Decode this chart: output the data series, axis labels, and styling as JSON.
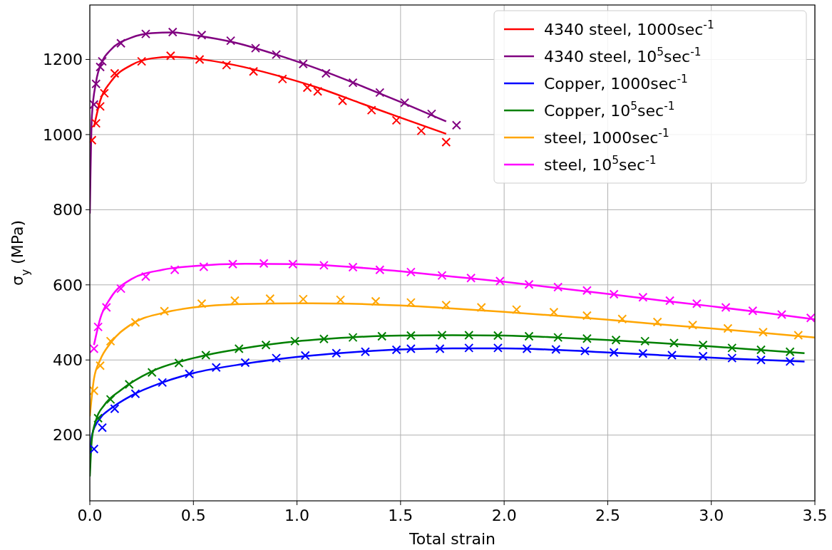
{
  "chart_data": {
    "type": "line",
    "xlabel": "Total strain",
    "ylabel": "σ$_{y}$  (MPa)",
    "xlim": [
      0,
      3.5
    ],
    "ylim": [
      25,
      1345
    ],
    "xticks": [
      {
        "value": 0,
        "label": "0.0"
      },
      0.5,
      {
        "value": 1,
        "label": "1.0"
      },
      1.5,
      {
        "value": 2,
        "label": "2.0"
      },
      2.5,
      {
        "value": 3,
        "label": "3.0"
      },
      3.5
    ],
    "yticks": [
      200,
      400,
      600,
      800,
      1000,
      1200
    ],
    "grid": true,
    "legend": "top right",
    "series": [
      {
        "name": "4340 steel,  1000sec$^{-1}$",
        "color": "#ff0000",
        "marker": "none",
        "x": [
          0.02,
          0.05,
          0.1,
          0.2,
          0.3,
          0.4,
          0.5,
          0.7,
          0.9,
          1.1,
          1.3,
          1.5,
          1.72
        ],
        "values": [
          1020,
          1090,
          1140,
          1185,
          1203,
          1207,
          1203,
          1185,
          1158,
          1125,
          1085,
          1045,
          1002
        ]
      },
      {
        "name": "4340 steel, 10$^{5}$sec$^{-1}$",
        "color": "#800080",
        "marker": "none",
        "x": [
          0,
          0.01,
          0.03,
          0.06,
          0.1,
          0.2,
          0.3,
          0.4,
          0.5,
          0.7,
          0.9,
          1.1,
          1.3,
          1.5,
          1.72
        ],
        "values": [
          790,
          1050,
          1140,
          1195,
          1225,
          1258,
          1270,
          1272,
          1265,
          1245,
          1213,
          1175,
          1132,
          1087,
          1035
        ]
      },
      {
        "name": "Copper,  1000sec$^{-1}$",
        "color": "#0000ff",
        "marker": "none",
        "x": [
          0,
          0.01,
          0.05,
          0.1,
          0.2,
          0.35,
          0.5,
          0.75,
          1,
          1.25,
          1.5,
          1.75,
          2,
          2.25,
          2.5,
          2.75,
          3,
          3.25,
          3.45
        ],
        "values": [
          150,
          200,
          245,
          270,
          305,
          340,
          365,
          390,
          408,
          420,
          428,
          431,
          431,
          427,
          420,
          413,
          406,
          400,
          396
        ]
      },
      {
        "name": "Copper, 10$^{5}$sec$^{-1}$",
        "color": "#008000",
        "marker": "none",
        "x": [
          0,
          0.01,
          0.03,
          0.07,
          0.15,
          0.3,
          0.5,
          0.75,
          1,
          1.25,
          1.5,
          1.75,
          2,
          2.25,
          2.5,
          2.75,
          3,
          3.25,
          3.45
        ],
        "values": [
          90,
          190,
          240,
          280,
          320,
          370,
          405,
          432,
          450,
          460,
          465,
          466,
          465,
          460,
          453,
          445,
          436,
          426,
          418
        ]
      },
      {
        "name": "steel,  1000sec$^{-1}$",
        "color": "#ffa500",
        "marker": "none",
        "x": [
          0,
          0.02,
          0.05,
          0.1,
          0.2,
          0.35,
          0.5,
          0.75,
          1,
          1.25,
          1.5,
          1.75,
          2,
          2.25,
          2.5,
          2.75,
          3,
          3.25,
          3.5
        ],
        "values": [
          250,
          350,
          400,
          445,
          495,
          525,
          540,
          549,
          551,
          550,
          545,
          537,
          528,
          518,
          507,
          495,
          484,
          472,
          460
        ]
      },
      {
        "name": "steel, 10$^{5}$sec$^{-1}$",
        "color": "#ff00ff",
        "marker": "none",
        "x": [
          0.02,
          0.05,
          0.1,
          0.2,
          0.35,
          0.5,
          0.75,
          1,
          1.25,
          1.5,
          1.75,
          2,
          2.25,
          2.5,
          2.75,
          3,
          3.25,
          3.5
        ],
        "values": [
          440,
          510,
          565,
          615,
          640,
          650,
          656,
          655,
          648,
          636,
          622,
          608,
          592,
          576,
          559,
          543,
          526,
          508
        ]
      },
      {
        "type": "scatter",
        "color": "#ff0000",
        "marker": "cross",
        "x": [
          0.01,
          0.03,
          0.05,
          0.07,
          0.12,
          0.25,
          0.39,
          0.53,
          0.66,
          0.79,
          0.93,
          1.05,
          1.1,
          1.22,
          1.36,
          1.48,
          1.6,
          1.72
        ],
        "values": [
          985,
          1030,
          1075,
          1110,
          1163,
          1195,
          1210,
          1200,
          1185,
          1168,
          1148,
          1125,
          1115,
          1090,
          1065,
          1038,
          1010,
          980
        ]
      },
      {
        "type": "scatter",
        "color": "#800080",
        "marker": "cross",
        "x": [
          0.02,
          0.03,
          0.05,
          0.06,
          0.15,
          0.27,
          0.4,
          0.54,
          0.68,
          0.8,
          0.9,
          1.03,
          1.14,
          1.27,
          1.4,
          1.52,
          1.65,
          1.77
        ],
        "values": [
          1080,
          1135,
          1180,
          1195,
          1243,
          1268,
          1273,
          1265,
          1250,
          1230,
          1213,
          1188,
          1163,
          1138,
          1112,
          1085,
          1055,
          1025
        ]
      },
      {
        "type": "scatter",
        "color": "#0000ff",
        "marker": "cross",
        "x": [
          0.02,
          0.06,
          0.12,
          0.22,
          0.35,
          0.48,
          0.61,
          0.75,
          0.9,
          1.04,
          1.19,
          1.33,
          1.48,
          1.55,
          1.69,
          1.83,
          1.97,
          2.11,
          2.25,
          2.39,
          2.53,
          2.67,
          2.81,
          2.96,
          3.1,
          3.24,
          3.38
        ],
        "values": [
          163,
          220,
          270,
          310,
          340,
          363,
          380,
          393,
          405,
          412,
          418,
          422,
          427,
          430,
          430,
          432,
          432,
          430,
          428,
          424,
          420,
          417,
          413,
          410,
          405,
          400,
          396
        ]
      },
      {
        "type": "scatter",
        "color": "#008000",
        "marker": "cross",
        "x": [
          0.04,
          0.1,
          0.19,
          0.3,
          0.43,
          0.56,
          0.72,
          0.85,
          0.99,
          1.13,
          1.27,
          1.41,
          1.55,
          1.7,
          1.83,
          1.97,
          2.12,
          2.26,
          2.4,
          2.54,
          2.68,
          2.82,
          2.96,
          3.1,
          3.24,
          3.38
        ],
        "values": [
          245,
          295,
          335,
          367,
          392,
          413,
          430,
          440,
          450,
          456,
          460,
          463,
          465,
          466,
          466,
          465,
          463,
          460,
          457,
          453,
          450,
          445,
          440,
          432,
          427,
          422
        ]
      },
      {
        "type": "scatter",
        "color": "#ffa500",
        "marker": "cross",
        "x": [
          0.02,
          0.05,
          0.1,
          0.22,
          0.36,
          0.54,
          0.7,
          0.87,
          1.03,
          1.21,
          1.38,
          1.55,
          1.72,
          1.89,
          2.06,
          2.24,
          2.4,
          2.57,
          2.74,
          2.91,
          3.08,
          3.25,
          3.42
        ],
        "values": [
          318,
          385,
          450,
          500,
          530,
          550,
          558,
          563,
          562,
          560,
          556,
          553,
          546,
          540,
          534,
          527,
          518,
          509,
          501,
          493,
          484,
          474,
          466
        ]
      },
      {
        "type": "scatter",
        "color": "#ff00ff",
        "marker": "cross",
        "x": [
          0.02,
          0.04,
          0.08,
          0.15,
          0.27,
          0.41,
          0.55,
          0.69,
          0.84,
          0.98,
          1.13,
          1.27,
          1.4,
          1.55,
          1.7,
          1.84,
          1.98,
          2.12,
          2.26,
          2.4,
          2.53,
          2.67,
          2.8,
          2.93,
          3.07,
          3.2,
          3.34,
          3.48
        ],
        "values": [
          430,
          488,
          540,
          590,
          622,
          640,
          648,
          655,
          657,
          655,
          652,
          647,
          640,
          634,
          625,
          618,
          610,
          601,
          594,
          585,
          575,
          567,
          558,
          550,
          540,
          531,
          521,
          512
        ]
      }
    ]
  }
}
